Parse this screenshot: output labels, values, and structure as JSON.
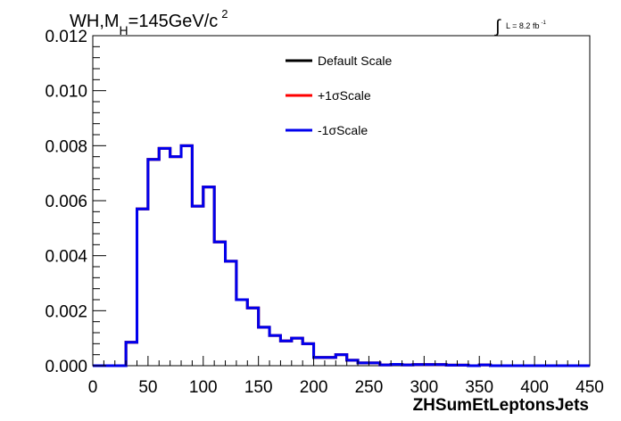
{
  "chart_data": {
    "type": "line",
    "title": {
      "prefix": "WH,M",
      "sub": "H",
      "mid": "=145GeV/c",
      "sup": "2"
    },
    "lumi": {
      "symbol": "∫",
      "text": "L = 8.2 fb",
      "sup": "-1"
    },
    "xlabel": "ZHSumEtLeptonsJets",
    "ylabel": "",
    "xlim": [
      0,
      450
    ],
    "ylim": [
      0,
      0.012
    ],
    "x_ticks": [
      0,
      50,
      100,
      150,
      200,
      250,
      300,
      350,
      400,
      450
    ],
    "x_tick_labels": [
      "0",
      "50",
      "100",
      "150",
      "200",
      "250",
      "300",
      "350",
      "400",
      "450"
    ],
    "y_ticks": [
      0,
      0.002,
      0.004,
      0.006,
      0.008,
      0.01,
      0.012
    ],
    "y_tick_labels": [
      "0.000",
      "0.002",
      "0.004",
      "0.006",
      "0.008",
      "0.010",
      "0.012"
    ],
    "bin_edges": [
      0,
      10,
      20,
      30,
      40,
      50,
      60,
      70,
      80,
      90,
      100,
      110,
      120,
      130,
      140,
      150,
      160,
      170,
      180,
      190,
      200,
      210,
      220,
      230,
      240,
      250,
      260,
      270,
      280,
      290,
      300,
      310,
      320,
      330,
      340,
      350,
      360,
      370,
      380,
      390,
      400,
      410,
      420,
      430,
      440,
      450
    ],
    "series": [
      {
        "name": "Default Scale",
        "color": "#000000",
        "values": [
          0,
          0,
          0,
          0.00085,
          0.0057,
          0.0075,
          0.0079,
          0.0076,
          0.008,
          0.0058,
          0.0065,
          0.0045,
          0.0038,
          0.0024,
          0.0021,
          0.0014,
          0.0011,
          0.0009,
          0.001,
          0.0008,
          0.0003,
          0.0003,
          0.0004,
          0.0002,
          0.0001,
          0.0001,
          3e-05,
          5e-05,
          3e-05,
          4e-05,
          4e-05,
          4e-05,
          2e-05,
          2e-05,
          0,
          3e-05,
          0,
          0,
          0,
          0,
          0,
          0,
          0,
          0,
          0
        ]
      },
      {
        "name": "+1σScale",
        "color": "#ff0000",
        "values": [
          0,
          0,
          0,
          0.00085,
          0.0057,
          0.0075,
          0.0079,
          0.0076,
          0.008,
          0.0058,
          0.0065,
          0.0045,
          0.0038,
          0.0024,
          0.0021,
          0.0014,
          0.0011,
          0.0009,
          0.001,
          0.0008,
          0.0003,
          0.0003,
          0.0004,
          0.0002,
          0.0001,
          0.0001,
          3e-05,
          5e-05,
          3e-05,
          4e-05,
          4e-05,
          4e-05,
          2e-05,
          2e-05,
          0,
          3e-05,
          0,
          0,
          0,
          0,
          0,
          0,
          0,
          0,
          0
        ]
      },
      {
        "name": "-1σScale",
        "color": "#0000ee",
        "values": [
          0,
          0,
          0,
          0.00085,
          0.0057,
          0.0075,
          0.0079,
          0.0076,
          0.008,
          0.0058,
          0.0065,
          0.0045,
          0.0038,
          0.0024,
          0.0021,
          0.0014,
          0.0011,
          0.0009,
          0.001,
          0.0008,
          0.0003,
          0.0003,
          0.0004,
          0.0002,
          0.0001,
          0.0001,
          3e-05,
          5e-05,
          3e-05,
          4e-05,
          4e-05,
          4e-05,
          2e-05,
          2e-05,
          0,
          3e-05,
          0,
          0,
          0,
          0,
          0,
          0,
          0,
          0,
          0
        ]
      }
    ],
    "legend_position": "top-center",
    "grid": false
  }
}
